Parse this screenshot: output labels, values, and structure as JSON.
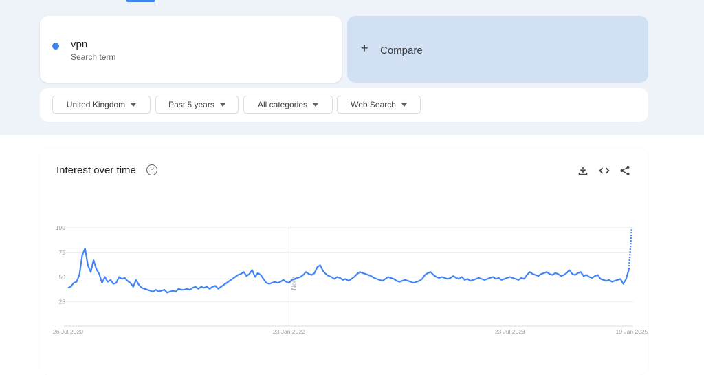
{
  "search_term": {
    "name": "vpn",
    "subtitle": "Search term",
    "color": "#4285f4"
  },
  "compare": {
    "plus": "+",
    "label": "Compare"
  },
  "filters": [
    {
      "label": "United Kingdom"
    },
    {
      "label": "Past 5 years"
    },
    {
      "label": "All categories"
    },
    {
      "label": "Web Search"
    }
  ],
  "chart_section": {
    "title": "Interest over time",
    "help_glyph": "?",
    "icons": [
      "download-icon",
      "embed-icon",
      "share-icon"
    ]
  },
  "chart_data": {
    "type": "line",
    "title": "",
    "xlabel": "",
    "ylabel": "",
    "ylim": [
      0,
      100
    ],
    "yticks": [
      "25",
      "50",
      "75",
      "100"
    ],
    "xticks": [
      "26 Jul 2020",
      "23 Jan 2022",
      "23 Jul 2023",
      "19 Jan 2025"
    ],
    "grid": true,
    "annotation": {
      "label": "Note",
      "at": "23 Jan 2022"
    },
    "partial_last_segment": true,
    "series": [
      {
        "color": "#4285f4",
        "x_start": "26 Jul 2020",
        "x_end": "Jul 2025",
        "values": [
          39,
          40,
          44,
          45,
          52,
          72,
          79,
          62,
          55,
          67,
          58,
          53,
          44,
          50,
          45,
          47,
          43,
          44,
          50,
          48,
          49,
          46,
          44,
          40,
          47,
          42,
          39,
          38,
          37,
          36,
          35,
          37,
          35,
          36,
          37,
          34,
          35,
          36,
          35,
          38,
          37,
          37,
          38,
          37,
          39,
          40,
          38,
          40,
          39,
          40,
          38,
          40,
          41,
          38,
          40,
          42,
          44,
          46,
          48,
          50,
          52,
          53,
          55,
          51,
          53,
          57,
          50,
          54,
          52,
          48,
          44,
          43,
          44,
          45,
          44,
          45,
          47,
          45,
          44,
          47,
          48,
          49,
          50,
          52,
          55,
          53,
          52,
          54,
          60,
          62,
          56,
          53,
          51,
          50,
          48,
          50,
          49,
          47,
          48,
          46,
          48,
          50,
          53,
          55,
          54,
          53,
          52,
          51,
          49,
          48,
          47,
          46,
          48,
          50,
          49,
          48,
          46,
          45,
          46,
          47,
          46,
          45,
          44,
          45,
          46,
          48,
          52,
          54,
          55,
          52,
          50,
          49,
          50,
          49,
          48,
          49,
          51,
          49,
          48,
          50,
          47,
          48,
          46,
          47,
          48,
          49,
          48,
          47,
          48,
          49,
          50,
          48,
          49,
          47,
          48,
          49,
          50,
          49,
          48,
          47,
          49,
          48,
          52,
          55,
          53,
          52,
          51,
          53,
          54,
          55,
          53,
          52,
          54,
          53,
          51,
          52,
          54,
          57,
          53,
          52,
          54,
          55,
          51,
          52,
          50,
          49,
          51,
          52,
          48,
          47,
          46,
          47,
          45,
          46,
          47,
          48,
          43,
          48,
          58
        ],
        "partial_values": [
          58,
          100
        ]
      }
    ]
  }
}
